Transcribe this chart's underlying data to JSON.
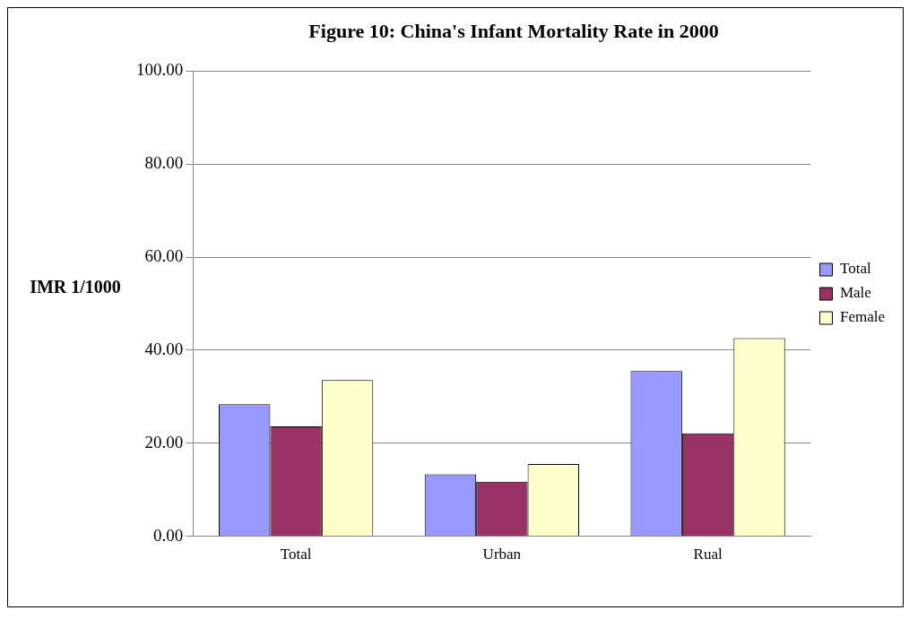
{
  "chart_data": {
    "type": "bar",
    "title": "Figure 10: China's Infant Mortality Rate in 2000",
    "ylabel": "IMR 1/1000",
    "categories": [
      "Total",
      "Urban",
      "Rual"
    ],
    "series": [
      {
        "name": "Total",
        "color": "#9999ff",
        "values": [
          28.4,
          13.3,
          35.5
        ]
      },
      {
        "name": "Male",
        "color": "#993366",
        "values": [
          23.6,
          11.7,
          22.1
        ]
      },
      {
        "name": "Female",
        "color": "#ffffcc",
        "values": [
          33.6,
          15.5,
          42.6
        ]
      }
    ],
    "ylim": [
      0,
      100
    ],
    "yticks": [
      {
        "value": 0,
        "label": "0.00"
      },
      {
        "value": 20,
        "label": "20.00"
      },
      {
        "value": 40,
        "label": "40.00"
      },
      {
        "value": 60,
        "label": "60.00"
      },
      {
        "value": 80,
        "label": "80.00"
      },
      {
        "value": 100,
        "label": "100.00"
      }
    ],
    "grid": "y",
    "legend": "right"
  }
}
